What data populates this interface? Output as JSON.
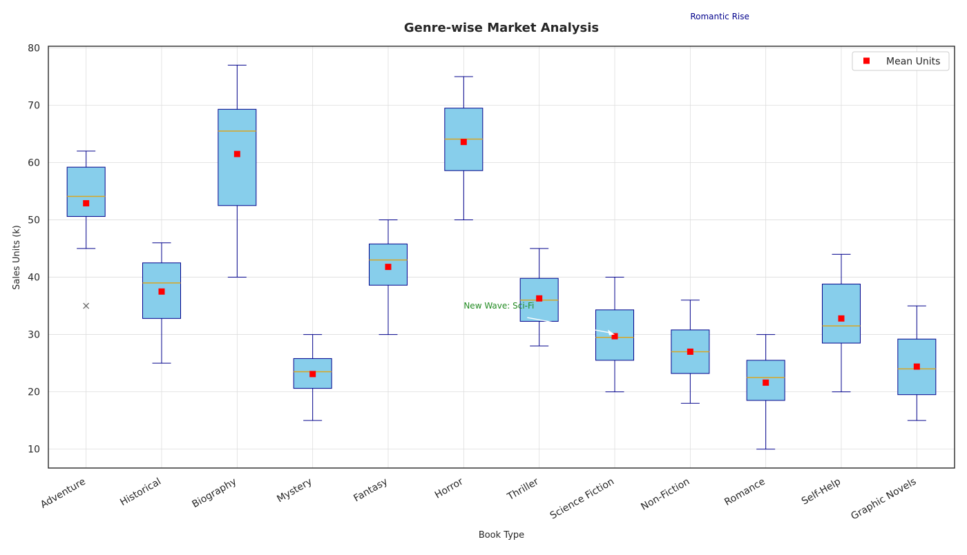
{
  "chart_data": {
    "type": "box",
    "title": "Genre-wise Market Analysis",
    "xlabel": "Book Type",
    "ylabel": "Sales Units (k)",
    "ylim": [
      6.7,
      80.3
    ],
    "yticks": [
      10,
      20,
      30,
      40,
      50,
      60,
      70,
      80
    ],
    "grid": true,
    "legend": {
      "position": "top-right",
      "entries": [
        "Mean Units"
      ]
    },
    "colors": {
      "box_fill": "#87ceeb",
      "box_edge": "#00008b",
      "median": "#daa520",
      "mean": "#ff0000",
      "outlier": "#666666",
      "grid": "#dddddd",
      "annotation_scifi": "#228b22",
      "annotation_romance": "#00008b"
    },
    "categories": [
      "Adventure",
      "Historical",
      "Biography",
      "Mystery",
      "Fantasy",
      "Horror",
      "Thriller",
      "Science Fiction",
      "Non-Fiction",
      "Romance",
      "Self-Help",
      "Graphic Novels"
    ],
    "boxes": [
      {
        "whisker_low": 45,
        "q1": 50.6,
        "median": 54.1,
        "q3": 59.2,
        "whisker_high": 62,
        "mean": 52.9,
        "outliers": [
          35
        ]
      },
      {
        "whisker_low": 25,
        "q1": 32.8,
        "median": 39.0,
        "q3": 42.5,
        "whisker_high": 46,
        "mean": 37.5,
        "outliers": []
      },
      {
        "whisker_low": 40,
        "q1": 52.5,
        "median": 65.5,
        "q3": 69.3,
        "whisker_high": 77,
        "mean": 61.5,
        "outliers": []
      },
      {
        "whisker_low": 15,
        "q1": 20.6,
        "median": 23.5,
        "q3": 25.8,
        "whisker_high": 30,
        "mean": 23.1,
        "outliers": []
      },
      {
        "whisker_low": 30,
        "q1": 38.6,
        "median": 43.0,
        "q3": 45.8,
        "whisker_high": 50,
        "mean": 41.8,
        "outliers": []
      },
      {
        "whisker_low": 50,
        "q1": 58.6,
        "median": 64.1,
        "q3": 69.5,
        "whisker_high": 75,
        "mean": 63.6,
        "outliers": []
      },
      {
        "whisker_low": 28,
        "q1": 32.3,
        "median": 36.0,
        "q3": 39.8,
        "whisker_high": 45,
        "mean": 36.3,
        "outliers": []
      },
      {
        "whisker_low": 20,
        "q1": 25.5,
        "median": 29.5,
        "q3": 34.3,
        "whisker_high": 40,
        "mean": 29.7,
        "outliers": []
      },
      {
        "whisker_low": 18,
        "q1": 23.2,
        "median": 27.0,
        "q3": 30.8,
        "whisker_high": 36,
        "mean": 27.0,
        "outliers": []
      },
      {
        "whisker_low": 10,
        "q1": 18.5,
        "median": 22.5,
        "q3": 25.5,
        "whisker_high": 30,
        "mean": 21.6,
        "outliers": []
      },
      {
        "whisker_low": 20,
        "q1": 28.5,
        "median": 31.5,
        "q3": 38.8,
        "whisker_high": 44,
        "mean": 32.8,
        "outliers": []
      },
      {
        "whisker_low": 15,
        "q1": 19.5,
        "median": 24.0,
        "q3": 29.2,
        "whisker_high": 35,
        "mean": 24.4,
        "outliers": []
      }
    ],
    "annotations": [
      {
        "text": "New Wave: Sci-Fi",
        "target_category": "Science Fiction",
        "target_y": 30.0,
        "text_category_pos": 5.0,
        "text_y": 35.0
      },
      {
        "text": "Romantic Rise",
        "target_category": "Romance",
        "target_y": 80.3,
        "text_category_pos": 8.0,
        "text_y": 85.5
      }
    ]
  }
}
